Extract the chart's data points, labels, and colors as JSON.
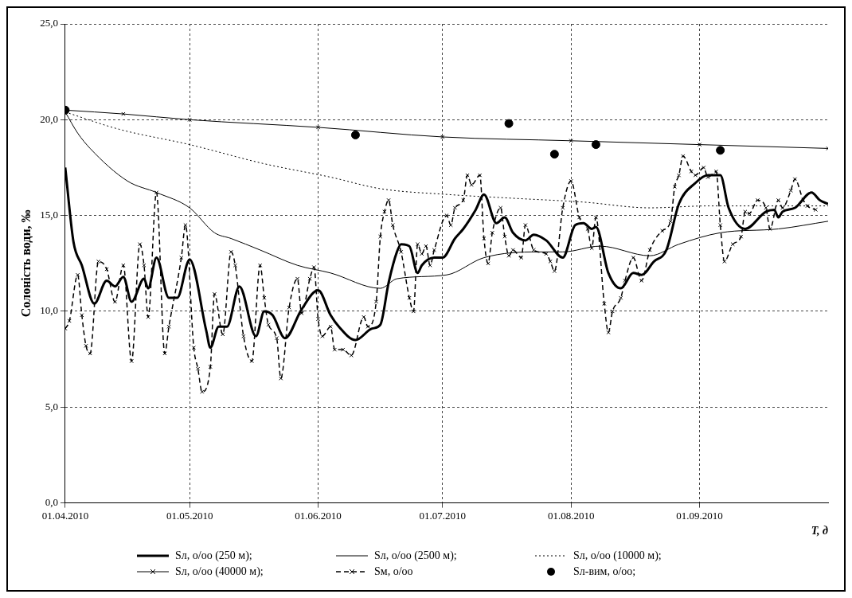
{
  "chart_data": {
    "type": "line",
    "ylabel": "Солоність води, ‰",
    "xlabel": "T, д",
    "xlim": [
      "2010-04-01",
      "2010-10-02"
    ],
    "xticks": [
      {
        "value": "2010-04-01",
        "label": "01.04.2010"
      },
      {
        "value": "2010-05-01",
        "label": "01.05.2010"
      },
      {
        "value": "2010-06-01",
        "label": "01.06.2010"
      },
      {
        "value": "2010-07-01",
        "label": "01.07.2010"
      },
      {
        "value": "2010-08-01",
        "label": "01.08.2010"
      },
      {
        "value": "2010-09-01",
        "label": "01.09.2010"
      }
    ],
    "ylim": [
      0,
      25
    ],
    "yticks": [
      {
        "value": 0,
        "label": "0,0"
      },
      {
        "value": 5,
        "label": "5,0"
      },
      {
        "value": 10,
        "label": "10,0"
      },
      {
        "value": 15,
        "label": "15,0"
      },
      {
        "value": 20,
        "label": "20,0"
      },
      {
        "value": 25,
        "label": "25,0"
      }
    ],
    "grid": true,
    "legend": "bottom",
    "series": [
      {
        "name": "Sл, о/оо (250 м);",
        "color": "#000000",
        "marker": "none",
        "line_style": "solid",
        "x": [
          "2010-04-01",
          "2010-04-03",
          "2010-04-05",
          "2010-04-08",
          "2010-04-11",
          "2010-04-13",
          "2010-04-15",
          "2010-04-17",
          "2010-04-20",
          "2010-04-21",
          "2010-04-23",
          "2010-04-26",
          "2010-04-28",
          "2010-05-01",
          "2010-05-05",
          "2010-05-06",
          "2010-05-08",
          "2010-05-10",
          "2010-05-13",
          "2010-05-17",
          "2010-05-19",
          "2010-05-21",
          "2010-05-24",
          "2010-05-28",
          "2010-06-01",
          "2010-06-04",
          "2010-06-06",
          "2010-06-10",
          "2010-06-14",
          "2010-06-16",
          "2010-06-18",
          "2010-06-20",
          "2010-06-21",
          "2010-06-23",
          "2010-06-25",
          "2010-06-26",
          "2010-06-29",
          "2010-07-01",
          "2010-07-04",
          "2010-07-06",
          "2010-07-09",
          "2010-07-11",
          "2010-07-14",
          "2010-07-16",
          "2010-07-18",
          "2010-07-21",
          "2010-07-23",
          "2010-07-26",
          "2010-07-30",
          "2010-08-02",
          "2010-08-04",
          "2010-08-06",
          "2010-08-07",
          "2010-08-10",
          "2010-08-13",
          "2010-08-16",
          "2010-08-18",
          "2010-08-21",
          "2010-08-24",
          "2010-08-27",
          "2010-08-31",
          "2010-09-03",
          "2010-09-06",
          "2010-09-08",
          "2010-09-12",
          "2010-09-17",
          "2010-09-19",
          "2010-09-20",
          "2010-09-21",
          "2010-09-24",
          "2010-09-28",
          "2010-09-30",
          "2010-10-02"
        ],
        "values": [
          17.5,
          13.6,
          12.4,
          10.4,
          11.6,
          11.3,
          11.8,
          10.5,
          11.7,
          11.2,
          12.8,
          10.7,
          10.7,
          12.7,
          9.0,
          8.1,
          9.2,
          9.2,
          11.3,
          8.7,
          10.0,
          9.8,
          8.6,
          10.1,
          11.1,
          9.8,
          9.2,
          8.5,
          9.1,
          9.3,
          11.5,
          13.1,
          13.5,
          13.4,
          12.0,
          12.4,
          12.8,
          12.8,
          13.8,
          14.3,
          15.3,
          16.1,
          14.6,
          14.9,
          14.1,
          13.7,
          14.0,
          13.7,
          12.8,
          14.5,
          14.6,
          14.3,
          14.4,
          12.0,
          11.2,
          12.0,
          11.9,
          12.6,
          13.2,
          15.6,
          16.7,
          17.1,
          17.1,
          15.4,
          14.3,
          15.2,
          15.3,
          14.9,
          15.2,
          15.4,
          16.2,
          15.8,
          15.6
        ]
      },
      {
        "name": "Sл, о/оо (2500 м);",
        "color": "#000000",
        "marker": "none",
        "line_style": "solid",
        "x": [
          "2010-04-01",
          "2010-04-04",
          "2010-04-07",
          "2010-04-16",
          "2010-04-23",
          "2010-05-01",
          "2010-05-07",
          "2010-05-11",
          "2010-05-18",
          "2010-05-27",
          "2010-06-04",
          "2010-06-16",
          "2010-06-20",
          "2010-07-02",
          "2010-07-11",
          "2010-07-24",
          "2010-07-30",
          "2010-08-08",
          "2010-08-20",
          "2010-08-27",
          "2010-09-06",
          "2010-09-20",
          "2010-10-02"
        ],
        "values": [
          20.4,
          19.3,
          18.5,
          16.8,
          16.2,
          15.4,
          14.1,
          13.8,
          13.2,
          12.4,
          12.0,
          11.2,
          11.7,
          11.9,
          12.8,
          13.1,
          13.1,
          13.4,
          12.9,
          13.5,
          14.1,
          14.3,
          14.7
        ]
      },
      {
        "name": "Sл, о/оо (10000 м);",
        "color": "#000000",
        "marker": "none",
        "line_style": "dotted",
        "x": [
          "2010-04-01",
          "2010-04-14",
          "2010-05-01",
          "2010-05-19",
          "2010-06-04",
          "2010-06-16",
          "2010-07-02",
          "2010-07-18",
          "2010-08-04",
          "2010-08-20",
          "2010-09-03",
          "2010-10-02"
        ],
        "values": [
          20.4,
          19.5,
          18.7,
          17.7,
          17.0,
          16.4,
          16.1,
          15.9,
          15.7,
          15.4,
          15.5,
          15.5
        ]
      },
      {
        "name": "Sл, о/оо (40000 м);",
        "color": "#000000",
        "marker": "cross",
        "line_style": "solid",
        "x": [
          "2010-04-01",
          "2010-04-15",
          "2010-05-01",
          "2010-06-01",
          "2010-07-01",
          "2010-08-01",
          "2010-09-01",
          "2010-10-02"
        ],
        "values": [
          20.5,
          20.3,
          20.0,
          19.6,
          19.1,
          18.9,
          18.7,
          18.5
        ]
      },
      {
        "name": "Sм, о/оо",
        "color": "#000000",
        "marker": "cross",
        "line_style": "dashed",
        "x": [
          "2010-04-01",
          "2010-04-02",
          "2010-04-04",
          "2010-04-05",
          "2010-04-06",
          "2010-04-07",
          "2010-04-09",
          "2010-04-11",
          "2010-04-13",
          "2010-04-15",
          "2010-04-17",
          "2010-04-19",
          "2010-04-20",
          "2010-04-21",
          "2010-04-23",
          "2010-04-25",
          "2010-04-26",
          "2010-04-29",
          "2010-04-30",
          "2010-05-02",
          "2010-05-03",
          "2010-05-04",
          "2010-05-06",
          "2010-05-07",
          "2010-05-09",
          "2010-05-11",
          "2010-05-12",
          "2010-05-14",
          "2010-05-16",
          "2010-05-18",
          "2010-05-19",
          "2010-05-20",
          "2010-05-22",
          "2010-05-23",
          "2010-05-25",
          "2010-05-27",
          "2010-05-28",
          "2010-05-30",
          "2010-05-31",
          "2010-06-01",
          "2010-06-02",
          "2010-06-04",
          "2010-06-05",
          "2010-06-07",
          "2010-06-09",
          "2010-06-12",
          "2010-06-13",
          "2010-06-15",
          "2010-06-16",
          "2010-06-17",
          "2010-06-18",
          "2010-06-19",
          "2010-06-21",
          "2010-06-23",
          "2010-06-24",
          "2010-06-25",
          "2010-06-26",
          "2010-06-27",
          "2010-06-28",
          "2010-06-29",
          "2010-07-02",
          "2010-07-03",
          "2010-07-04",
          "2010-07-06",
          "2010-07-07",
          "2010-07-08",
          "2010-07-10",
          "2010-07-11",
          "2010-07-12",
          "2010-07-13",
          "2010-07-15",
          "2010-07-16",
          "2010-07-17",
          "2010-07-18",
          "2010-07-20",
          "2010-07-21",
          "2010-07-23",
          "2010-07-26",
          "2010-07-27",
          "2010-07-28",
          "2010-07-30",
          "2010-08-01",
          "2010-08-03",
          "2010-08-05",
          "2010-08-06",
          "2010-08-07",
          "2010-08-09",
          "2010-08-10",
          "2010-08-11",
          "2010-08-13",
          "2010-08-14",
          "2010-08-16",
          "2010-08-18",
          "2010-08-20",
          "2010-08-23",
          "2010-08-25",
          "2010-08-26",
          "2010-08-27",
          "2010-08-28",
          "2010-08-30",
          "2010-08-31",
          "2010-09-02",
          "2010-09-03",
          "2010-09-05",
          "2010-09-06",
          "2010-09-07",
          "2010-09-09",
          "2010-09-11",
          "2010-09-12",
          "2010-09-13",
          "2010-09-15",
          "2010-09-17",
          "2010-09-18",
          "2010-09-20",
          "2010-09-21",
          "2010-09-23",
          "2010-09-24",
          "2010-09-26",
          "2010-09-27",
          "2010-09-29"
        ],
        "values": [
          9.1,
          9.5,
          11.9,
          9.8,
          8.2,
          7.8,
          12.6,
          12.2,
          10.5,
          12.4,
          7.4,
          13.5,
          12.4,
          9.7,
          16.2,
          7.8,
          9.2,
          12.8,
          14.5,
          8.1,
          7.0,
          5.8,
          7.1,
          10.9,
          8.8,
          13.1,
          12.4,
          8.7,
          7.4,
          12.4,
          10.7,
          9.3,
          8.6,
          6.5,
          10.2,
          11.7,
          9.9,
          11.7,
          12.3,
          9.6,
          8.7,
          9.2,
          8.0,
          8.0,
          7.7,
          9.7,
          9.2,
          10.5,
          13.9,
          15.2,
          15.8,
          14.5,
          13.1,
          10.7,
          10.0,
          13.5,
          13.0,
          13.4,
          12.4,
          13.2,
          15.0,
          14.5,
          15.4,
          15.8,
          17.1,
          16.6,
          17.1,
          13.8,
          12.5,
          14.1,
          15.4,
          13.9,
          12.9,
          13.2,
          12.8,
          14.5,
          13.2,
          13.0,
          12.6,
          12.1,
          15.4,
          16.8,
          14.9,
          14.3,
          13.3,
          14.9,
          10.4,
          8.9,
          10.0,
          10.7,
          11.6,
          12.8,
          11.6,
          13.2,
          14.2,
          14.7,
          16.5,
          17.1,
          18.1,
          17.3,
          17.1,
          17.5,
          17.0,
          17.3,
          14.5,
          12.6,
          13.5,
          13.9,
          15.2,
          15.1,
          15.8,
          15.4,
          14.3,
          15.8,
          15.4,
          16.3,
          16.9,
          15.8,
          15.5,
          15.3
        ]
      },
      {
        "name": "Sл-вим, о/оо;",
        "type": "scatter",
        "color": "#000000",
        "marker": "circle",
        "x": [
          "2010-04-01",
          "2010-06-10",
          "2010-07-17",
          "2010-07-28",
          "2010-08-07",
          "2010-09-06"
        ],
        "values": [
          20.5,
          19.2,
          19.8,
          18.2,
          18.7,
          18.4
        ]
      }
    ]
  }
}
